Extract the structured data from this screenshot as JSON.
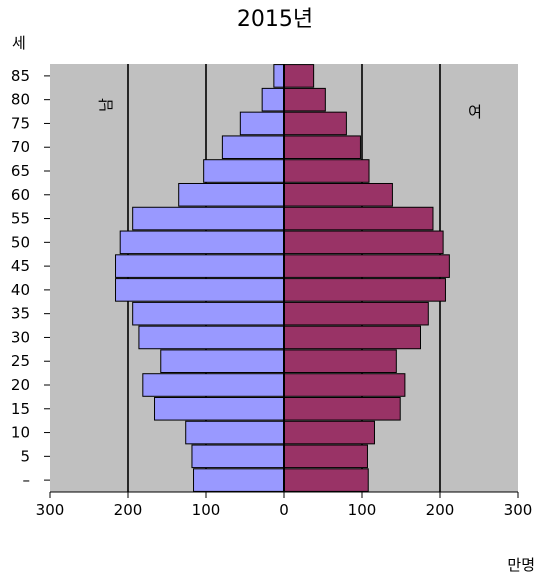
{
  "chart_data": {
    "type": "bar",
    "orientation": "horizontal",
    "layout": "population-pyramid",
    "title": "2015년",
    "yunit": "세",
    "xunit": "만명",
    "categories": [
      "–",
      "5",
      "10",
      "15",
      "20",
      "25",
      "30",
      "35",
      "40",
      "45",
      "50",
      "55",
      "60",
      "65",
      "70",
      "75",
      "80",
      "85"
    ],
    "x_ticks": [
      "300",
      "200",
      "100",
      "0",
      "100",
      "200",
      "300"
    ],
    "xlim": [
      -300,
      300
    ],
    "grid": true,
    "series": [
      {
        "name": "남",
        "color": "#9999FF",
        "side": "left",
        "values": [
          116,
          118,
          126,
          166,
          181,
          158,
          186,
          194,
          216,
          216,
          210,
          194,
          135,
          103,
          79,
          56,
          28,
          13
        ]
      },
      {
        "name": "여",
        "color": "#993366",
        "side": "right",
        "values": [
          108,
          107,
          116,
          149,
          155,
          144,
          175,
          185,
          207,
          212,
          204,
          191,
          139,
          109,
          98,
          80,
          53,
          38
        ]
      }
    ],
    "colors": {
      "plot_background": "#C0C0C0",
      "gridline": "#000000",
      "axis": "#000000"
    }
  }
}
